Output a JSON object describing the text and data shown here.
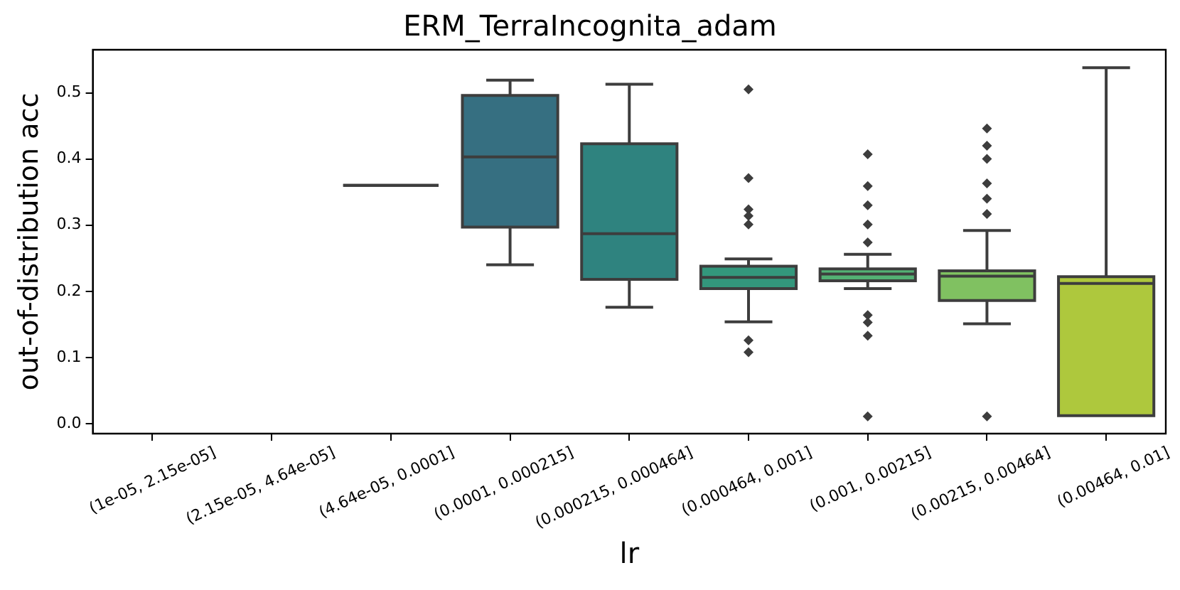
{
  "chart_data": {
    "type": "box",
    "title": "ERM_TerraIncognita_adam",
    "xlabel": "lr",
    "ylabel": "out-of-distribution acc",
    "categories": [
      "(1e-05, 2.15e-05]",
      "(2.15e-05, 4.64e-05]",
      "(4.64e-05, 0.0001]",
      "(0.0001, 0.000215]",
      "(0.000215, 0.000464]",
      "(0.000464, 0.001]",
      "(0.001, 0.00215]",
      "(0.00215, 0.00464]",
      "(0.00464, 0.01]"
    ],
    "boxes": [
      null,
      null,
      {
        "low": 0.36,
        "q1": 0.36,
        "median": 0.36,
        "q3": 0.36,
        "high": 0.36
      },
      {
        "low": 0.24,
        "q1": 0.297,
        "median": 0.403,
        "q3": 0.496,
        "high": 0.519
      },
      {
        "low": 0.176,
        "q1": 0.218,
        "median": 0.287,
        "q3": 0.423,
        "high": 0.513
      },
      {
        "low": 0.154,
        "q1": 0.204,
        "median": 0.221,
        "q3": 0.238,
        "high": 0.249,
        "outliers": [
          0.505,
          0.371,
          0.324,
          0.314,
          0.301,
          0.126,
          0.108
        ]
      },
      {
        "low": 0.204,
        "q1": 0.216,
        "median": 0.226,
        "q3": 0.234,
        "high": 0.256,
        "outliers": [
          0.407,
          0.359,
          0.33,
          0.301,
          0.274,
          0.164,
          0.153,
          0.133,
          0.011
        ]
      },
      {
        "low": 0.151,
        "q1": 0.186,
        "median": 0.223,
        "q3": 0.231,
        "high": 0.292,
        "outliers": [
          0.446,
          0.42,
          0.4,
          0.363,
          0.34,
          0.317,
          0.011
        ]
      },
      {
        "low": 0.012,
        "q1": 0.012,
        "median": 0.212,
        "q3": 0.222,
        "high": 0.538
      }
    ],
    "colors": [
      null,
      null,
      null,
      "#366f81",
      "#2f837f",
      "#33977c",
      "#53b074",
      "#80c161",
      "#aec83d"
    ],
    "ylim": [
      -0.015,
      0.565
    ],
    "yticks": [
      {
        "value": 0,
        "label": "0.0"
      },
      {
        "value": 0.1,
        "label": "0.1"
      },
      {
        "value": 0.2,
        "label": "0.2"
      },
      {
        "value": 0.3,
        "label": "0.3"
      },
      {
        "value": 0.4,
        "label": "0.4"
      },
      {
        "value": 0.5,
        "label": "0.5"
      }
    ],
    "grid": false
  }
}
